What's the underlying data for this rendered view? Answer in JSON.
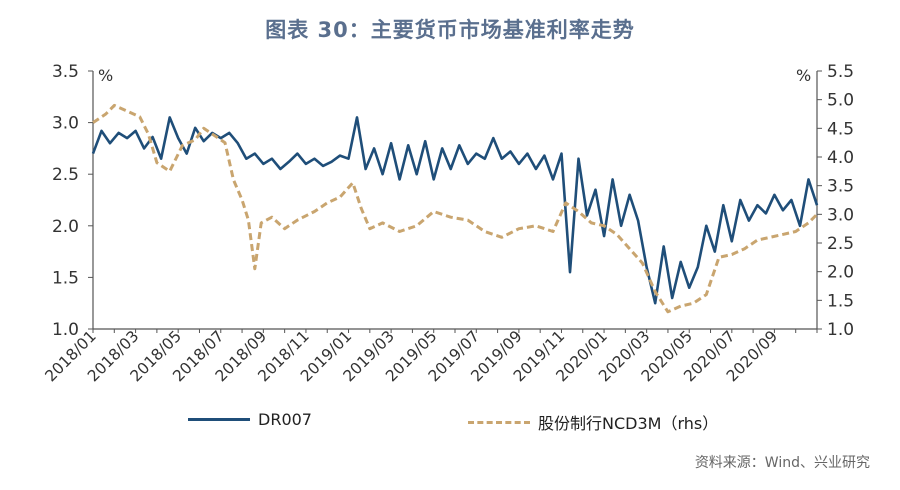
{
  "title": "图表 30：主要货币市场基准利率走势",
  "unit_left": "%",
  "unit_right": "%",
  "source": "资料来源：Wind、兴业研究",
  "legend": [
    {
      "name": "DR007",
      "color": "#1f4e79",
      "style": "solid"
    },
    {
      "name": "股份制行NCD3M（rhs）",
      "color": "#c9a56f",
      "style": "dashed"
    }
  ],
  "chart_data": {
    "type": "line",
    "title": "图表 30：主要货币市场基准利率走势",
    "x_tick_labels": [
      "2018/01",
      "2018/03",
      "2018/05",
      "2018/07",
      "2018/09",
      "2018/11",
      "2019/01",
      "2019/03",
      "2019/05",
      "2019/07",
      "2019/09",
      "2019/11",
      "2020/01",
      "2020/03",
      "2020/05",
      "2020/07",
      "2020/09"
    ],
    "x_range_months": [
      0,
      34
    ],
    "y_left": {
      "min": 1.0,
      "max": 3.5,
      "step": 0.5,
      "ticks": [
        "1.0",
        "1.5",
        "2.0",
        "2.5",
        "3.0",
        "3.5"
      ]
    },
    "y_right": {
      "min": 1.0,
      "max": 5.5,
      "step": 0.5,
      "ticks": [
        "1.0",
        "1.5",
        "2.0",
        "2.5",
        "3.0",
        "3.5",
        "4.0",
        "4.5",
        "5.0",
        "5.5"
      ]
    },
    "series": [
      {
        "name": "DR007",
        "axis": "left",
        "points": [
          [
            0,
            2.7
          ],
          [
            0.4,
            2.92
          ],
          [
            0.8,
            2.8
          ],
          [
            1.2,
            2.9
          ],
          [
            1.6,
            2.85
          ],
          [
            2.0,
            2.92
          ],
          [
            2.4,
            2.75
          ],
          [
            2.8,
            2.86
          ],
          [
            3.2,
            2.65
          ],
          [
            3.6,
            3.05
          ],
          [
            4.0,
            2.85
          ],
          [
            4.4,
            2.7
          ],
          [
            4.8,
            2.95
          ],
          [
            5.2,
            2.82
          ],
          [
            5.6,
            2.9
          ],
          [
            6.0,
            2.85
          ],
          [
            6.4,
            2.9
          ],
          [
            6.8,
            2.8
          ],
          [
            7.2,
            2.65
          ],
          [
            7.6,
            2.7
          ],
          [
            8.0,
            2.6
          ],
          [
            8.4,
            2.65
          ],
          [
            8.8,
            2.55
          ],
          [
            9.2,
            2.62
          ],
          [
            9.6,
            2.7
          ],
          [
            10.0,
            2.6
          ],
          [
            10.4,
            2.65
          ],
          [
            10.8,
            2.58
          ],
          [
            11.2,
            2.62
          ],
          [
            11.6,
            2.68
          ],
          [
            12.0,
            2.65
          ],
          [
            12.4,
            3.05
          ],
          [
            12.8,
            2.55
          ],
          [
            13.2,
            2.75
          ],
          [
            13.6,
            2.5
          ],
          [
            14.0,
            2.8
          ],
          [
            14.4,
            2.45
          ],
          [
            14.8,
            2.78
          ],
          [
            15.2,
            2.5
          ],
          [
            15.6,
            2.82
          ],
          [
            16.0,
            2.45
          ],
          [
            16.4,
            2.75
          ],
          [
            16.8,
            2.55
          ],
          [
            17.2,
            2.78
          ],
          [
            17.6,
            2.6
          ],
          [
            18.0,
            2.7
          ],
          [
            18.4,
            2.65
          ],
          [
            18.8,
            2.85
          ],
          [
            19.2,
            2.65
          ],
          [
            19.6,
            2.72
          ],
          [
            20.0,
            2.6
          ],
          [
            20.4,
            2.7
          ],
          [
            20.8,
            2.55
          ],
          [
            21.2,
            2.68
          ],
          [
            21.6,
            2.45
          ],
          [
            22.0,
            2.7
          ],
          [
            22.4,
            1.55
          ],
          [
            22.8,
            2.65
          ],
          [
            23.2,
            2.1
          ],
          [
            23.6,
            2.35
          ],
          [
            24.0,
            1.9
          ],
          [
            24.4,
            2.45
          ],
          [
            24.8,
            2.0
          ],
          [
            25.2,
            2.3
          ],
          [
            25.6,
            2.05
          ],
          [
            26.0,
            1.6
          ],
          [
            26.4,
            1.25
          ],
          [
            26.8,
            1.8
          ],
          [
            27.2,
            1.3
          ],
          [
            27.6,
            1.65
          ],
          [
            28.0,
            1.4
          ],
          [
            28.4,
            1.6
          ],
          [
            28.8,
            2.0
          ],
          [
            29.2,
            1.75
          ],
          [
            29.6,
            2.2
          ],
          [
            30.0,
            1.85
          ],
          [
            30.4,
            2.25
          ],
          [
            30.8,
            2.05
          ],
          [
            31.2,
            2.2
          ],
          [
            31.6,
            2.12
          ],
          [
            32.0,
            2.3
          ],
          [
            32.4,
            2.15
          ],
          [
            32.8,
            2.25
          ],
          [
            33.2,
            2.0
          ],
          [
            33.6,
            2.45
          ],
          [
            34.0,
            2.2
          ]
        ]
      },
      {
        "name": "股份制行NCD3M（rhs）",
        "axis": "right",
        "points": [
          [
            0,
            4.6
          ],
          [
            0.6,
            4.75
          ],
          [
            1.0,
            4.9
          ],
          [
            1.6,
            4.8
          ],
          [
            2.2,
            4.7
          ],
          [
            2.6,
            4.4
          ],
          [
            3.0,
            3.9
          ],
          [
            3.6,
            3.75
          ],
          [
            4.2,
            4.2
          ],
          [
            4.8,
            4.3
          ],
          [
            5.2,
            4.5
          ],
          [
            5.8,
            4.35
          ],
          [
            6.2,
            4.25
          ],
          [
            6.6,
            3.6
          ],
          [
            7.0,
            3.25
          ],
          [
            7.3,
            2.9
          ],
          [
            7.6,
            2.05
          ],
          [
            7.9,
            2.85
          ],
          [
            8.4,
            2.95
          ],
          [
            9.0,
            2.75
          ],
          [
            9.6,
            2.9
          ],
          [
            10.4,
            3.05
          ],
          [
            11.0,
            3.2
          ],
          [
            11.6,
            3.3
          ],
          [
            12.2,
            3.55
          ],
          [
            12.6,
            3.1
          ],
          [
            13.0,
            2.75
          ],
          [
            13.6,
            2.85
          ],
          [
            14.4,
            2.7
          ],
          [
            15.2,
            2.8
          ],
          [
            16.0,
            3.05
          ],
          [
            16.8,
            2.95
          ],
          [
            17.6,
            2.9
          ],
          [
            18.4,
            2.7
          ],
          [
            19.2,
            2.6
          ],
          [
            20.0,
            2.75
          ],
          [
            20.8,
            2.8
          ],
          [
            21.6,
            2.7
          ],
          [
            22.2,
            3.2
          ],
          [
            22.8,
            3.05
          ],
          [
            23.4,
            2.85
          ],
          [
            24.0,
            2.8
          ],
          [
            24.6,
            2.65
          ],
          [
            25.2,
            2.4
          ],
          [
            25.8,
            2.15
          ],
          [
            26.4,
            1.65
          ],
          [
            27.0,
            1.3
          ],
          [
            27.6,
            1.4
          ],
          [
            28.2,
            1.45
          ],
          [
            28.8,
            1.6
          ],
          [
            29.4,
            2.25
          ],
          [
            30.0,
            2.3
          ],
          [
            30.6,
            2.4
          ],
          [
            31.2,
            2.55
          ],
          [
            31.8,
            2.6
          ],
          [
            32.4,
            2.65
          ],
          [
            33.0,
            2.7
          ],
          [
            33.6,
            2.85
          ],
          [
            34.0,
            3.0
          ]
        ]
      }
    ]
  }
}
